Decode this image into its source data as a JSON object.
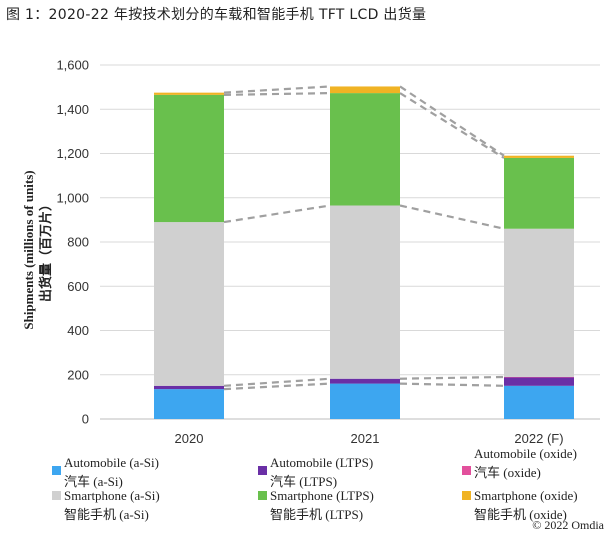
{
  "figure_title": "图 1：2020-22 年按技术划分的车载和智能手机 TFT LCD 出货量",
  "copyright": "© 2022 Omdia",
  "colors": {
    "auto_asi": "#3da6f0",
    "auto_ltps": "#6a2fa6",
    "auto_oxide": "#e2509c",
    "smart_asi": "#d0d0d0",
    "smart_ltps": "#69c04d",
    "smart_oxide": "#f0b324",
    "connector": "#a0a0a0",
    "grid": "#d9d9d9"
  },
  "chart_data": {
    "type": "bar",
    "stacked": true,
    "categories": [
      "2020",
      "2021",
      "2022 (F)"
    ],
    "ylabel": "Shipments (millions of units)",
    "ylabel_cn": "出货量（百万片）",
    "ylim": [
      0,
      1600
    ],
    "yticks": [
      0,
      200,
      400,
      600,
      800,
      1000,
      1200,
      1400,
      1600
    ],
    "ytick_labels": [
      "0",
      "200",
      "400",
      "600",
      "800",
      "1,000",
      "1,200",
      "1,400",
      "1,600"
    ],
    "grid": "horizontal",
    "connector_lines": true,
    "series": [
      {
        "key": "auto_asi",
        "name": "Automobile (a-Si)",
        "name_cn": "汽车 (a-Si)",
        "values": [
          135,
          160,
          150
        ]
      },
      {
        "key": "auto_ltps",
        "name": "Automobile (LTPS)",
        "name_cn": "汽车 (LTPS)",
        "values": [
          15,
          22,
          38
        ]
      },
      {
        "key": "auto_oxide",
        "name": "Automobile (oxide)",
        "name_cn": "汽车 (oxide)",
        "values": [
          0,
          0,
          2
        ]
      },
      {
        "key": "smart_asi",
        "name": "Smartphone (a-Si)",
        "name_cn": "智能手机 (a-Si)",
        "values": [
          740,
          783,
          670
        ]
      },
      {
        "key": "smart_ltps",
        "name": "Smartphone (LTPS)",
        "name_cn": "智能手机 (LTPS)",
        "values": [
          575,
          508,
          320
        ]
      },
      {
        "key": "smart_oxide",
        "name": "Smartphone (oxide)",
        "name_cn": "智能手机 (oxide)",
        "values": [
          10,
          30,
          10
        ]
      }
    ]
  },
  "legend": [
    {
      "key": "auto_asi",
      "line1": "Automobile (a-Si)",
      "line2": "汽车 (a-Si)"
    },
    {
      "key": "auto_ltps",
      "line1": "Automobile (LTPS)",
      "line2": "汽车 (LTPS)"
    },
    {
      "key": "auto_oxide",
      "line1": "Automobile (oxide)",
      "line2": "汽车 (oxide)"
    },
    {
      "key": "smart_asi",
      "line1": "Smartphone (a-Si)",
      "line2": "智能手机 (a-Si)"
    },
    {
      "key": "smart_ltps",
      "line1": "Smartphone (LTPS)",
      "line2": "智能手机 (LTPS)"
    },
    {
      "key": "smart_oxide",
      "line1": "Smartphone (oxide)",
      "line2": "智能手机 (oxide)"
    }
  ]
}
